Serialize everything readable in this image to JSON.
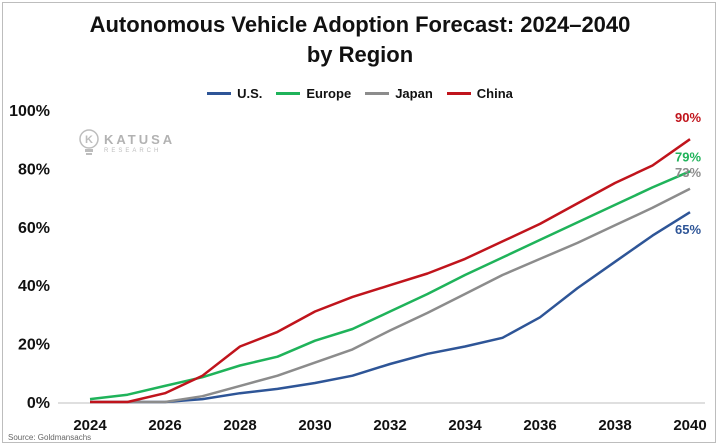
{
  "chart_data": {
    "type": "line",
    "title": "Autonomous Vehicle Adoption Forecast: 2024–2040",
    "subtitle": "by Region",
    "x": [
      2024,
      2025,
      2026,
      2027,
      2028,
      2029,
      2030,
      2031,
      2032,
      2033,
      2034,
      2035,
      2036,
      2037,
      2038,
      2039,
      2040
    ],
    "x_ticks": [
      2024,
      2026,
      2028,
      2030,
      2032,
      2034,
      2036,
      2038,
      2040
    ],
    "x_tick_labels": [
      "2024",
      "2026",
      "2028",
      "2030",
      "2032",
      "2034",
      "2036",
      "2038",
      "2040"
    ],
    "y_ticks": [
      0,
      20,
      40,
      60,
      80,
      100
    ],
    "y_tick_labels": [
      "0%",
      "20%",
      "40%",
      "60%",
      "80%",
      "100%"
    ],
    "ylim": [
      0,
      100
    ],
    "xlim": [
      2024,
      2040
    ],
    "grid": false,
    "legend_position": "top",
    "series": [
      {
        "name": "U.S.",
        "color": "#2e5597",
        "end_label": "65%",
        "values": [
          0,
          0,
          0,
          1,
          3,
          4.5,
          6.5,
          9,
          13,
          16.5,
          19,
          22,
          29,
          39,
          48,
          57,
          65
        ]
      },
      {
        "name": "Europe",
        "color": "#1fb35a",
        "end_label": "79%",
        "values": [
          1,
          2.5,
          5.5,
          8.5,
          12.5,
          15.5,
          21,
          25,
          31,
          37,
          43.5,
          49.5,
          55.5,
          61.5,
          67.5,
          73.5,
          79
        ]
      },
      {
        "name": "Japan",
        "color": "#8c8c8c",
        "end_label": "73%",
        "values": [
          0,
          0,
          0,
          2,
          5.5,
          9,
          13.5,
          18,
          24.5,
          30.5,
          37,
          43.5,
          49,
          54.5,
          60.5,
          66.5,
          73
        ]
      },
      {
        "name": "China",
        "color": "#c0141c",
        "end_label": "90%",
        "values": [
          0,
          0,
          3,
          9,
          19,
          24,
          31,
          36,
          40,
          44,
          49,
          55,
          61,
          68,
          75,
          81,
          90
        ]
      }
    ]
  },
  "watermark": {
    "name": "KATUSA",
    "sub": "RESEARCH"
  },
  "source": "Source: Goldmansachs"
}
